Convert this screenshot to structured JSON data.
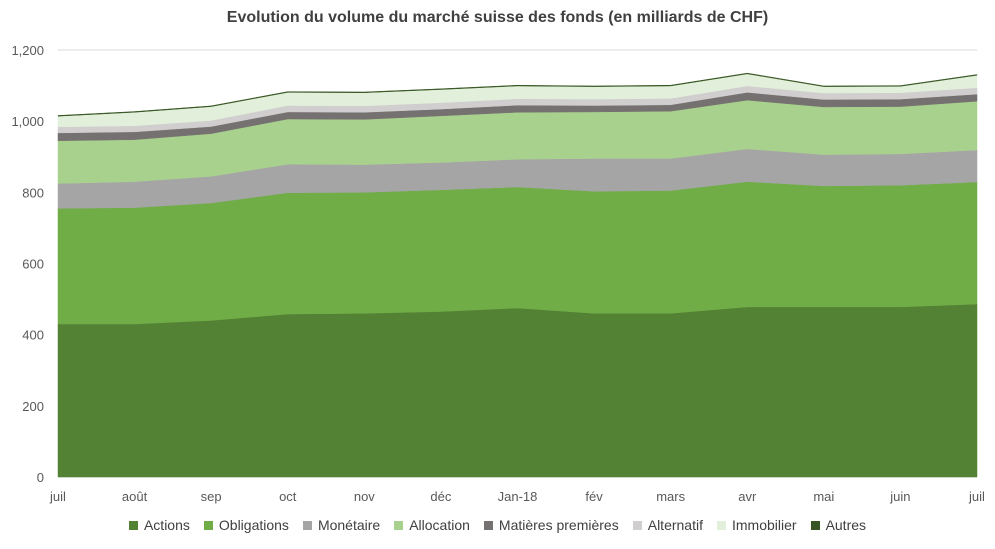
{
  "chart_data": {
    "type": "area",
    "stacked": true,
    "title": "Evolution du volume du marché suisse des fonds (en milliards de CHF)",
    "xlabel": "",
    "ylabel": "",
    "ylim": [
      0,
      1200
    ],
    "yticks": [
      0,
      200,
      400,
      600,
      800,
      1000,
      1200
    ],
    "ytick_labels": [
      "0",
      "200",
      "400",
      "600",
      "800",
      "1,000",
      "1,200"
    ],
    "grid": true,
    "legend_position": "bottom",
    "categories": [
      "juil",
      "août",
      "sep",
      "oct",
      "nov",
      "déc",
      "Jan-18",
      "fév",
      "mars",
      "avr",
      "mai",
      "juin",
      "juil"
    ],
    "series": [
      {
        "name": "Actions",
        "color": "#548235",
        "values": [
          430,
          430,
          440,
          458,
          460,
          465,
          475,
          460,
          460,
          478,
          478,
          478,
          486
        ]
      },
      {
        "name": "Obligations",
        "color": "#70ad47",
        "values": [
          325,
          327,
          330,
          341,
          340,
          342,
          340,
          343,
          345,
          352,
          340,
          342,
          343
        ]
      },
      {
        "name": "Monétaire",
        "color": "#a5a5a5",
        "values": [
          70,
          73,
          75,
          80,
          78,
          77,
          78,
          92,
          90,
          92,
          88,
          88,
          90
        ]
      },
      {
        "name": "Allocation",
        "color": "#a9d18e",
        "values": [
          120,
          118,
          120,
          127,
          127,
          131,
          132,
          131,
          133,
          137,
          134,
          133,
          137
        ]
      },
      {
        "name": "Matières premières",
        "color": "#767171",
        "values": [
          22,
          22,
          20,
          20,
          20,
          19,
          20,
          18,
          18,
          22,
          21,
          21,
          20
        ]
      },
      {
        "name": "Alternatif",
        "color": "#d0cece",
        "values": [
          17,
          17,
          17,
          18,
          18,
          18,
          18,
          18,
          18,
          18,
          18,
          18,
          18
        ]
      },
      {
        "name": "Immobilier",
        "color": "#e2efda",
        "values": [
          30,
          38,
          39,
          37,
          37,
          37,
          36,
          35,
          35,
          34,
          18,
          18,
          35
        ]
      },
      {
        "name": "Autres",
        "color": "#375623",
        "values": [
          2,
          2,
          2,
          2,
          2,
          2,
          2,
          2,
          2,
          2,
          2,
          2,
          2
        ]
      }
    ]
  }
}
